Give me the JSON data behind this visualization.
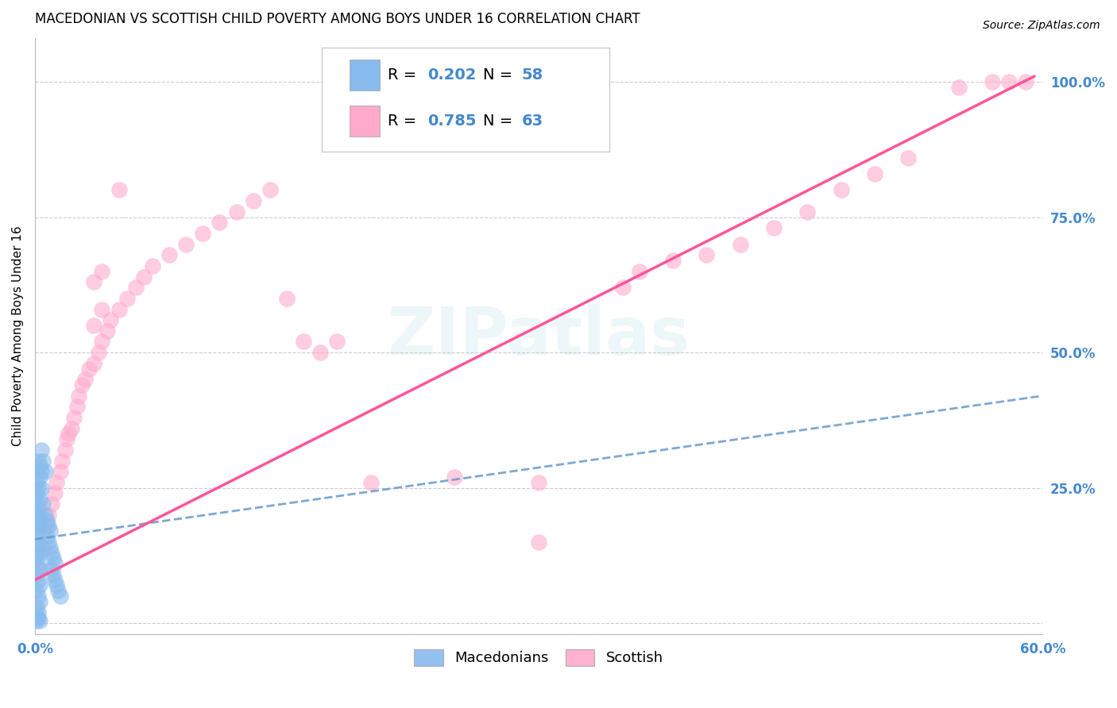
{
  "title": "MACEDONIAN VS SCOTTISH CHILD POVERTY AMONG BOYS UNDER 16 CORRELATION CHART",
  "source": "Source: ZipAtlas.com",
  "ylabel": "Child Poverty Among Boys Under 16",
  "xlim": [
    0.0,
    0.6
  ],
  "ylim": [
    -0.02,
    1.08
  ],
  "xticks": [
    0.0,
    0.1,
    0.2,
    0.3,
    0.4,
    0.5,
    0.6
  ],
  "xticklabels": [
    "0.0%",
    "",
    "",
    "",
    "",
    "",
    "60.0%"
  ],
  "ytick_right_labels": [
    "100.0%",
    "75.0%",
    "50.0%",
    "25.0%"
  ],
  "ytick_right_values": [
    1.0,
    0.75,
    0.5,
    0.25
  ],
  "background_color": "#ffffff",
  "grid_color": "#cccccc",
  "mac_color": "#88bbee",
  "sco_color": "#ffaacc",
  "mac_line_color": "#6699cc",
  "sco_line_color": "#ff5599",
  "tick_color": "#4488cc",
  "mac_R": "0.202",
  "mac_N": "58",
  "sco_R": "0.785",
  "sco_N": "63",
  "macedonian_scatter": [
    [
      0.001,
      0.28
    ],
    [
      0.002,
      0.3
    ],
    [
      0.003,
      0.29
    ],
    [
      0.004,
      0.28
    ],
    [
      0.003,
      0.27
    ],
    [
      0.001,
      0.26
    ],
    [
      0.002,
      0.25
    ],
    [
      0.001,
      0.24
    ],
    [
      0.003,
      0.23
    ],
    [
      0.001,
      0.22
    ],
    [
      0.002,
      0.21
    ],
    [
      0.001,
      0.2
    ],
    [
      0.003,
      0.2
    ],
    [
      0.002,
      0.19
    ],
    [
      0.001,
      0.18
    ],
    [
      0.003,
      0.18
    ],
    [
      0.001,
      0.17
    ],
    [
      0.002,
      0.16
    ],
    [
      0.001,
      0.15
    ],
    [
      0.002,
      0.14
    ],
    [
      0.001,
      0.13
    ],
    [
      0.003,
      0.13
    ],
    [
      0.001,
      0.12
    ],
    [
      0.002,
      0.11
    ],
    [
      0.003,
      0.1
    ],
    [
      0.001,
      0.09
    ],
    [
      0.002,
      0.08
    ],
    [
      0.003,
      0.07
    ],
    [
      0.001,
      0.06
    ],
    [
      0.002,
      0.05
    ],
    [
      0.003,
      0.04
    ],
    [
      0.001,
      0.03
    ],
    [
      0.002,
      0.02
    ],
    [
      0.001,
      0.01
    ],
    [
      0.002,
      0.01
    ],
    [
      0.001,
      0.005
    ],
    [
      0.003,
      0.005
    ],
    [
      0.004,
      0.32
    ],
    [
      0.005,
      0.3
    ],
    [
      0.006,
      0.28
    ],
    [
      0.004,
      0.25
    ],
    [
      0.005,
      0.22
    ],
    [
      0.006,
      0.2
    ],
    [
      0.007,
      0.19
    ],
    [
      0.008,
      0.18
    ],
    [
      0.009,
      0.17
    ],
    [
      0.007,
      0.16
    ],
    [
      0.008,
      0.15
    ],
    [
      0.009,
      0.14
    ],
    [
      0.01,
      0.13
    ],
    [
      0.011,
      0.12
    ],
    [
      0.012,
      0.11
    ],
    [
      0.01,
      0.1
    ],
    [
      0.011,
      0.09
    ],
    [
      0.012,
      0.08
    ],
    [
      0.013,
      0.07
    ],
    [
      0.014,
      0.06
    ],
    [
      0.015,
      0.05
    ]
  ],
  "scottish_scatter": [
    [
      0.003,
      0.1
    ],
    [
      0.005,
      0.14
    ],
    [
      0.007,
      0.18
    ],
    [
      0.008,
      0.2
    ],
    [
      0.01,
      0.22
    ],
    [
      0.012,
      0.24
    ],
    [
      0.013,
      0.26
    ],
    [
      0.015,
      0.28
    ],
    [
      0.016,
      0.3
    ],
    [
      0.018,
      0.32
    ],
    [
      0.019,
      0.34
    ],
    [
      0.02,
      0.35
    ],
    [
      0.022,
      0.36
    ],
    [
      0.023,
      0.38
    ],
    [
      0.025,
      0.4
    ],
    [
      0.026,
      0.42
    ],
    [
      0.028,
      0.44
    ],
    [
      0.03,
      0.45
    ],
    [
      0.032,
      0.47
    ],
    [
      0.035,
      0.48
    ],
    [
      0.038,
      0.5
    ],
    [
      0.04,
      0.52
    ],
    [
      0.043,
      0.54
    ],
    [
      0.045,
      0.56
    ],
    [
      0.05,
      0.58
    ],
    [
      0.055,
      0.6
    ],
    [
      0.06,
      0.62
    ],
    [
      0.065,
      0.64
    ],
    [
      0.07,
      0.66
    ],
    [
      0.08,
      0.68
    ],
    [
      0.09,
      0.7
    ],
    [
      0.1,
      0.72
    ],
    [
      0.11,
      0.74
    ],
    [
      0.12,
      0.76
    ],
    [
      0.13,
      0.78
    ],
    [
      0.14,
      0.8
    ],
    [
      0.15,
      0.6
    ],
    [
      0.16,
      0.52
    ],
    [
      0.17,
      0.5
    ],
    [
      0.18,
      0.52
    ],
    [
      0.2,
      0.26
    ],
    [
      0.25,
      0.27
    ],
    [
      0.3,
      0.15
    ],
    [
      0.035,
      0.63
    ],
    [
      0.04,
      0.65
    ],
    [
      0.035,
      0.55
    ],
    [
      0.04,
      0.58
    ],
    [
      0.3,
      0.26
    ],
    [
      0.35,
      0.62
    ],
    [
      0.36,
      0.65
    ],
    [
      0.38,
      0.67
    ],
    [
      0.4,
      0.68
    ],
    [
      0.42,
      0.7
    ],
    [
      0.44,
      0.73
    ],
    [
      0.46,
      0.76
    ],
    [
      0.48,
      0.8
    ],
    [
      0.5,
      0.83
    ],
    [
      0.52,
      0.86
    ],
    [
      0.55,
      0.99
    ],
    [
      0.57,
      1.0
    ],
    [
      0.58,
      1.0
    ],
    [
      0.59,
      1.0
    ],
    [
      0.05,
      0.8
    ]
  ],
  "mac_trendline_x": [
    0.0,
    0.6
  ],
  "mac_trendline_y": [
    0.155,
    0.42
  ],
  "sco_trendline_x": [
    0.0,
    0.595
  ],
  "sco_trendline_y": [
    0.08,
    1.01
  ]
}
